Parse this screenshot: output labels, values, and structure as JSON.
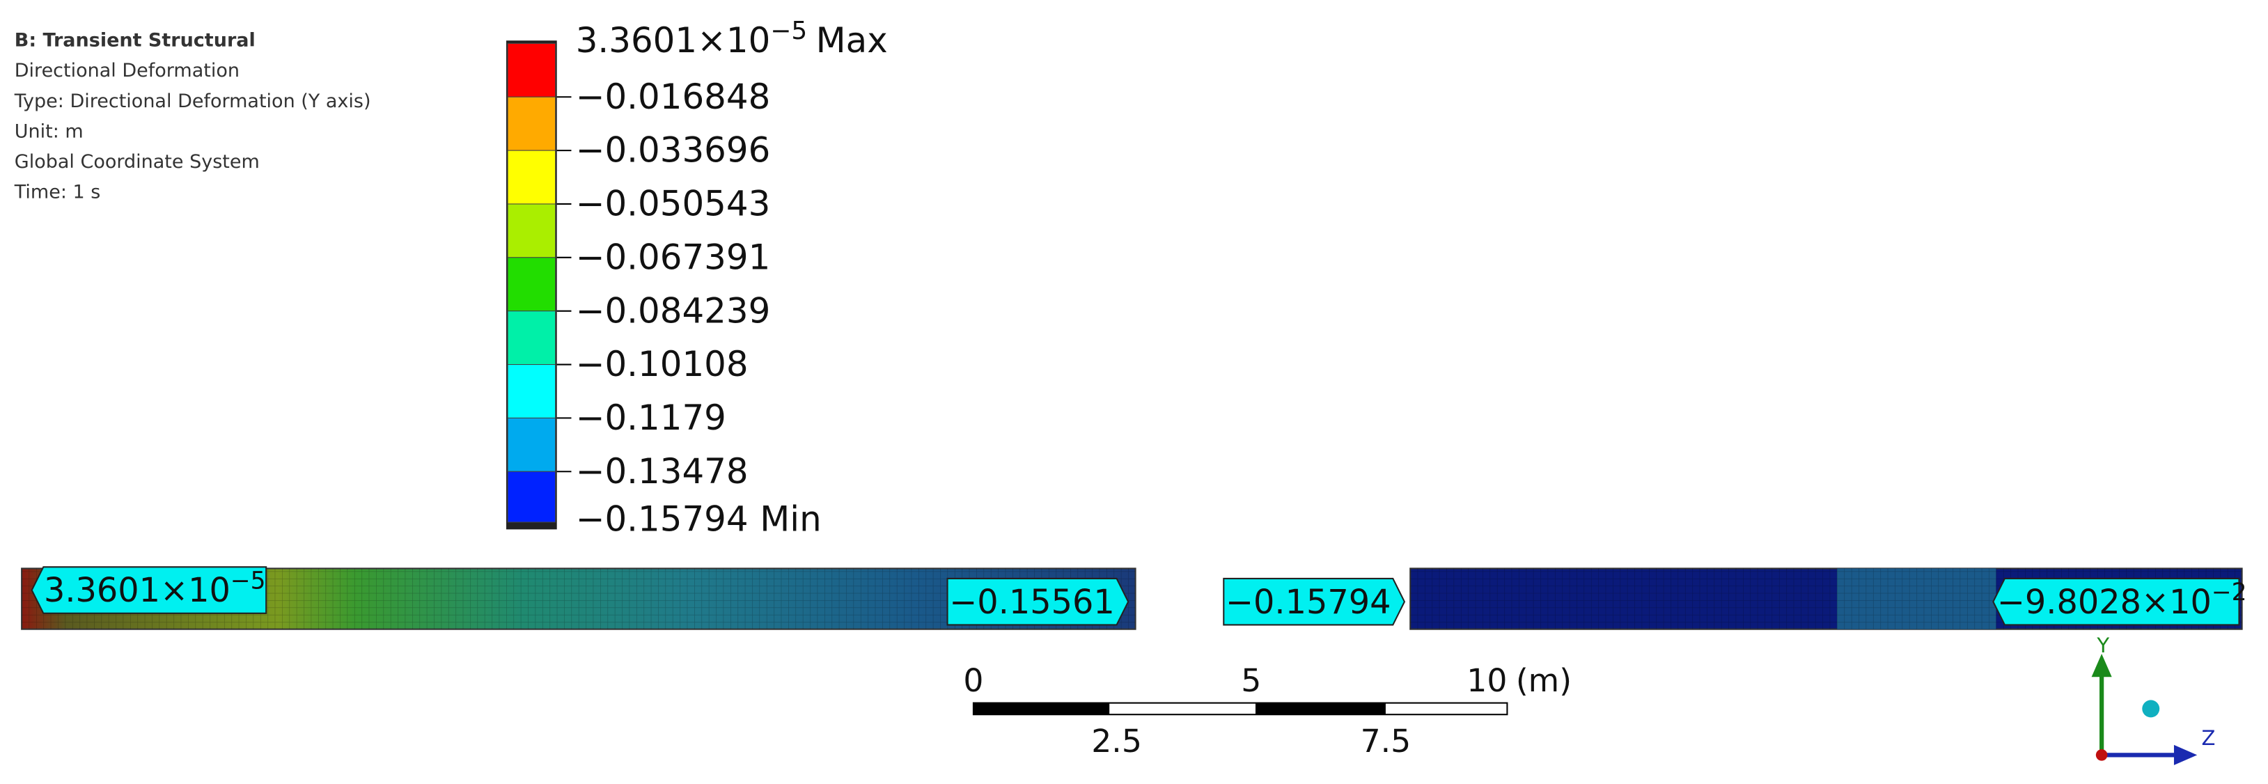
{
  "header": {
    "title": "B: Transient Structural",
    "lines": [
      "Directional Deformation",
      "Type: Directional Deformation (Y axis)",
      "Unit: m",
      "Global Coordinate System",
      "Time: 1 s"
    ]
  },
  "legend": {
    "max": {
      "base": "3.3601×10",
      "exp": "−5",
      "tag": "Max"
    },
    "levels": [
      "−0.016848",
      "−0.033696",
      "−0.050543",
      "−0.067391",
      "−0.084239",
      "−0.10108",
      "−0.1179",
      "−0.13478"
    ],
    "min": {
      "value": "−0.15794",
      "tag": "Min"
    },
    "colors": [
      "#ff0000",
      "#ffaa00",
      "#ffff00",
      "#aaee00",
      "#22dd00",
      "#00f0a8",
      "#00ffff",
      "#00aaee",
      "#0022ff"
    ]
  },
  "probes": [
    {
      "base": "3.3601×10",
      "exp": "−5"
    },
    {
      "base": "−0.15561"
    },
    {
      "base": "−0.15794"
    },
    {
      "base": "−9.8028×10",
      "exp": "−2"
    }
  ],
  "scale_bar": {
    "top": [
      "0",
      "5",
      "10"
    ],
    "unit": "(m)",
    "bottom": [
      "2.5",
      "7.5"
    ]
  },
  "triad": {
    "y": "Y",
    "z": "Z"
  }
}
